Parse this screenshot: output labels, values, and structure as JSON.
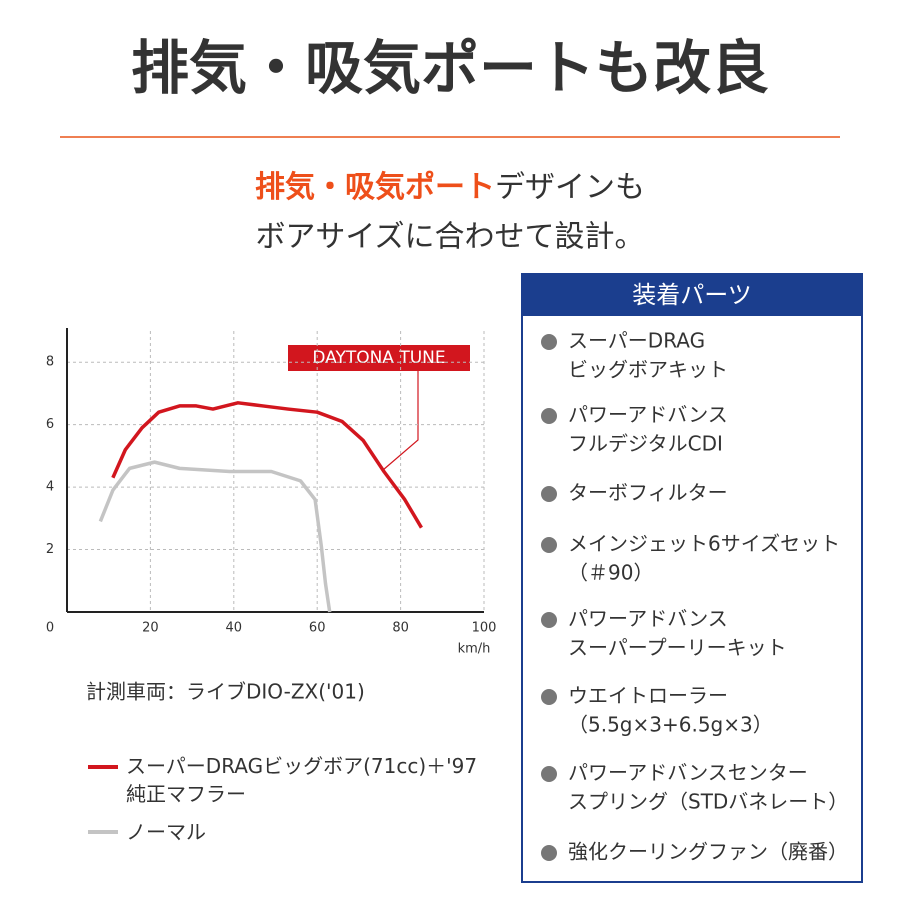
{
  "header": {
    "title": "排気・吸気ポートも改良"
  },
  "subtitle": {
    "highlight": "排気・吸気ポート",
    "rest": "デザインも",
    "line2": "ボアサイズに合わせて設計。"
  },
  "chart_data": {
    "type": "line",
    "annotation": "DAYTONA TUNE",
    "x_label": "km/h",
    "xlim": [
      0,
      100
    ],
    "xticks": [
      0,
      20,
      40,
      60,
      80,
      100
    ],
    "ylim": [
      0,
      9
    ],
    "yticks": [
      2,
      4,
      6,
      8
    ],
    "grid": true,
    "note": "計測車両：ライブDIO-ZX('01)",
    "series": [
      {
        "name": "スーパーDRAGビッグボア(71cc)＋'97純正マフラー",
        "color": "#d2161e",
        "x": [
          11,
          14,
          18,
          22,
          27,
          31,
          35,
          41,
          47,
          53,
          60,
          66,
          71,
          76,
          81,
          85
        ],
        "values": [
          4.3,
          5.2,
          5.9,
          6.4,
          6.6,
          6.6,
          6.5,
          6.7,
          6.6,
          6.5,
          6.4,
          6.1,
          5.5,
          4.5,
          3.6,
          2.7
        ]
      },
      {
        "name": "ノーマル",
        "color": "#c4c4c4",
        "x": [
          8,
          11,
          15,
          21,
          27,
          39,
          49,
          56,
          59.5,
          61,
          62,
          63
        ],
        "values": [
          2.9,
          3.9,
          4.6,
          4.8,
          4.6,
          4.5,
          4.5,
          4.2,
          3.6,
          2.1,
          0.9,
          0
        ]
      }
    ]
  },
  "parts": {
    "title": "装着パーツ",
    "items": [
      [
        "スーパーDRAG",
        "ビッグボアキット"
      ],
      [
        "パワーアドバンス",
        "フルデジタルCDI"
      ],
      [
        "ターボフィルター"
      ],
      [
        "メインジェット6サイズセット",
        "（＃90）"
      ],
      [
        "パワーアドバンス",
        "スーパープーリーキット"
      ],
      [
        "ウエイトローラー",
        "（5.5g×3+6.5g×3）"
      ],
      [
        "パワーアドバンスセンター",
        "スプリング（STDバネレート）"
      ],
      [
        "強化クーリングファン（廃番）"
      ]
    ]
  }
}
